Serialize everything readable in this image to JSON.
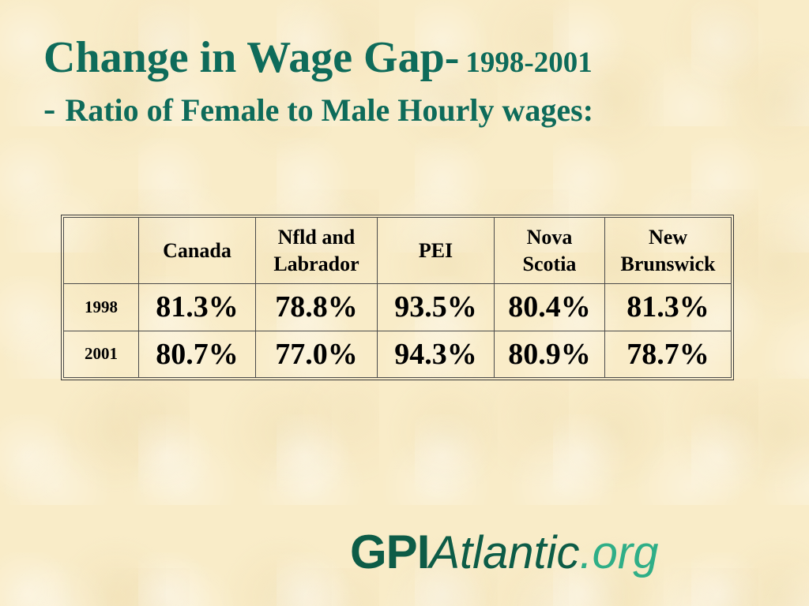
{
  "slide": {
    "title_main": "Change in Wage Gap-",
    "title_years": "1998-2001",
    "title_dash": "-",
    "title_sub": "Ratio of Female to Male Hourly wages:"
  },
  "table": {
    "corner": "",
    "headers": [
      "Canada",
      "Nfld and\nLabrador",
      "PEI",
      "Nova\nScotia",
      "New\nBrunswick"
    ],
    "rows": [
      {
        "year": "1998",
        "values": [
          "81.3%",
          "78.8%",
          "93.5%",
          "80.4%",
          "81.3%"
        ]
      },
      {
        "year": "2001",
        "values": [
          "80.7%",
          "77.0%",
          "94.3%",
          "80.9%",
          "78.7%"
        ]
      }
    ]
  },
  "logo": {
    "gpi": "GPI",
    "atlantic": "Atlantic",
    "org": ".org",
    "colors": {
      "primary": "#0d5c47",
      "accent": "#2fae87"
    }
  },
  "colors": {
    "title": "#0e6b5a",
    "background": "#f9ecc8"
  }
}
